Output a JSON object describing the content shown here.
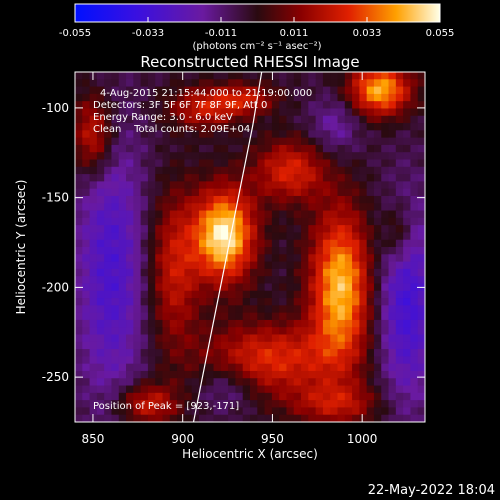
{
  "colorbar": {
    "ticks": [
      "-0.055",
      "-0.033",
      "-0.011",
      "0.011",
      "0.033",
      "0.055"
    ],
    "tick_values": [
      -0.055,
      -0.033,
      -0.011,
      0.011,
      0.033,
      0.055
    ],
    "units": "(photons cm⁻² s⁻¹ asec⁻²)"
  },
  "chart_data": {
    "type": "heatmap",
    "title": "Reconstructed RHESSI Image",
    "xlabel": "Heliocentric X (arcsec)",
    "ylabel": "Heliocentric Y (arcsec)",
    "xlim": [
      840,
      1035
    ],
    "ylim": [
      -275,
      -80
    ],
    "xticks": [
      "850",
      "900",
      "950",
      "1000"
    ],
    "xtick_values": [
      850,
      900,
      950,
      1000
    ],
    "yticks": [
      "-100",
      "-150",
      "-200",
      "-250"
    ],
    "ytick_values": [
      -100,
      -150,
      -200,
      -250
    ],
    "value_range": [
      -0.055,
      0.055
    ],
    "annotations": [
      "4-Aug-2015 21:15:44.000 to 21:19:00.000",
      "Detectors: 3F 5F 6F 7F 8F 9F, Att 0",
      "Energy Range: 3.0 - 6.0 keV",
      "Clean    Total counts: 2.09E+04"
    ],
    "peak_label": "Position of Peak = [923,-171]",
    "sources": [
      {
        "x": 923,
        "y": -171,
        "sx": 12,
        "sy": 18,
        "amp": 0.058
      },
      {
        "x": 988,
        "y": -200,
        "sx": 12,
        "sy": 30,
        "amp": 0.05
      },
      {
        "x": 960,
        "y": -135,
        "sx": 14,
        "sy": 12,
        "amp": 0.03
      },
      {
        "x": 948,
        "y": -240,
        "sx": 26,
        "sy": 14,
        "amp": 0.032
      },
      {
        "x": 895,
        "y": -190,
        "sx": 10,
        "sy": 30,
        "amp": 0.026
      },
      {
        "x": 1010,
        "y": -90,
        "sx": 12,
        "sy": 10,
        "amp": 0.048
      },
      {
        "x": 850,
        "y": -115,
        "sx": 8,
        "sy": 16,
        "amp": 0.03
      },
      {
        "x": 912,
        "y": -100,
        "sx": 14,
        "sy": 8,
        "amp": 0.026
      },
      {
        "x": 935,
        "y": -95,
        "sx": 12,
        "sy": 6,
        "amp": 0.024
      },
      {
        "x": 880,
        "y": -265,
        "sx": 12,
        "sy": 8,
        "amp": 0.028
      },
      {
        "x": 1020,
        "y": -170,
        "sx": 6,
        "sy": 12,
        "amp": 0.018
      },
      {
        "x": 985,
        "y": -265,
        "sx": 18,
        "sy": 8,
        "amp": 0.022
      }
    ],
    "negatives": [
      {
        "x": 860,
        "y": -190,
        "sx": 14,
        "sy": 55,
        "amp": -0.025
      },
      {
        "x": 1025,
        "y": -210,
        "sx": 12,
        "sy": 40,
        "amp": -0.028
      },
      {
        "x": 925,
        "y": -255,
        "sx": 12,
        "sy": 10,
        "amp": -0.015
      },
      {
        "x": 985,
        "y": -110,
        "sx": 10,
        "sy": 12,
        "amp": -0.014
      }
    ],
    "limb": [
      [
        906,
        -275
      ],
      [
        915,
        -230
      ],
      [
        923,
        -190
      ],
      [
        931,
        -150
      ],
      [
        939,
        -110
      ],
      [
        944,
        -80
      ]
    ]
  },
  "footer": {
    "timestamp": "22-May-2022 18:04"
  }
}
